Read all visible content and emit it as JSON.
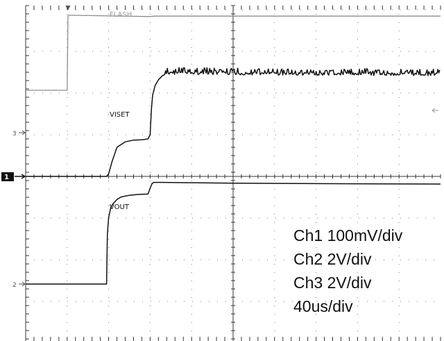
{
  "chart_data": {
    "type": "line",
    "grid": true,
    "x_divisions": 10,
    "y_divisions": 8,
    "x_range": [
      0,
      10
    ],
    "x_unit_label": "div",
    "y_unit_label": "div",
    "trigger_marker": "▼",
    "series": [
      {
        "name": "FLASH",
        "channel_marker": "3",
        "label_color": "#9a9a9a",
        "color": "#8c8c8c",
        "x": [
          0,
          1.0,
          1.02,
          1.1,
          3.0,
          3.1,
          5.0,
          10.0
        ],
        "y": [
          1.0,
          1.0,
          2.8,
          2.8,
          2.77,
          2.78,
          2.78,
          2.78
        ]
      },
      {
        "name": "VISET",
        "channel_marker": "1",
        "label_color": "#111111",
        "color": "#111111",
        "noise_amplitude": 0.12,
        "noise_start_x": 3.35,
        "x": [
          0,
          1.0,
          1.95,
          2.0,
          2.08,
          2.2,
          2.4,
          2.6,
          2.8,
          2.95,
          3.0,
          3.03,
          3.06,
          3.12,
          3.2,
          3.3,
          3.4,
          3.6,
          4.0,
          5.0,
          7.0,
          10.0
        ],
        "y": [
          0.0,
          0.0,
          0.0,
          0.06,
          0.35,
          0.7,
          0.83,
          0.87,
          0.88,
          0.9,
          1.0,
          1.6,
          1.95,
          2.18,
          2.32,
          2.42,
          2.47,
          2.48,
          2.48,
          2.47,
          2.46,
          2.45
        ]
      },
      {
        "name": "VOUT",
        "channel_marker": "2",
        "label_color": "#111111",
        "color": "#111111",
        "x": [
          0,
          1.0,
          1.95,
          1.97,
          2.0,
          2.05,
          2.1,
          2.2,
          2.3,
          2.5,
          2.7,
          2.95,
          3.0,
          3.05,
          3.1,
          3.3,
          5.0,
          7.0,
          10.0
        ],
        "y": [
          0.0,
          0.0,
          0.0,
          1.2,
          1.6,
          1.83,
          1.92,
          2.03,
          2.09,
          2.13,
          2.15,
          2.16,
          2.3,
          2.42,
          2.44,
          2.44,
          2.42,
          2.41,
          2.4
        ]
      }
    ],
    "channel_scales": [
      "Ch1 100mV/div",
      "Ch2 2V/div",
      "Ch3 2V/div",
      "40us/div"
    ]
  }
}
